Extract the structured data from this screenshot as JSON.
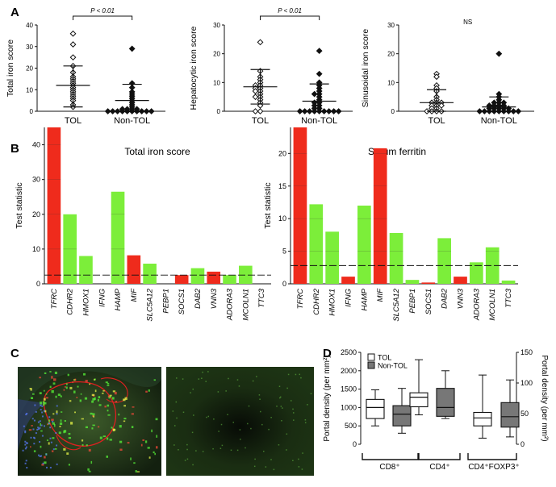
{
  "panels": [
    {
      "letter": "A"
    },
    {
      "letter": "B"
    },
    {
      "letter": "C"
    },
    {
      "letter": "D"
    }
  ],
  "chart_data": [
    {
      "panel": "A",
      "type": "scatter",
      "ylabel": "Total iron score",
      "ylim": [
        0,
        40
      ],
      "yticks": [
        0,
        10,
        20,
        30,
        40
      ],
      "categories": [
        "TOL",
        "Non-TOL"
      ],
      "annotation": "P < 0.01",
      "series": [
        {
          "name": "TOL",
          "values": [
            36,
            31,
            25,
            21,
            18,
            16,
            15,
            14,
            13,
            12,
            11,
            10,
            9,
            8,
            7,
            6,
            5,
            3,
            2
          ]
        },
        {
          "name": "Non-TOL",
          "values": [
            29,
            13,
            11,
            9,
            8,
            7,
            6,
            5,
            4,
            3,
            2,
            1,
            1,
            1,
            1,
            0,
            0,
            0,
            0,
            0,
            0,
            0,
            0,
            0,
            0
          ]
        }
      ],
      "mean_sd": [
        {
          "mean": 12,
          "upper": 21,
          "lower": 2
        },
        {
          "mean": 5,
          "upper": 12.5,
          "lower": 0
        }
      ]
    },
    {
      "panel": "A",
      "type": "scatter",
      "ylabel": "Hepatocytic iron score",
      "ylim": [
        0,
        30
      ],
      "yticks": [
        0,
        10,
        20,
        30
      ],
      "categories": [
        "TOL",
        "Non-TOL"
      ],
      "annotation": "P < 0.01",
      "series": [
        {
          "name": "TOL",
          "values": [
            24,
            14,
            12,
            11,
            10,
            9,
            9,
            8,
            8,
            7,
            7,
            6,
            5,
            5,
            4,
            3,
            2,
            0,
            0
          ]
        },
        {
          "name": "Non-TOL",
          "values": [
            21,
            13,
            10,
            9,
            8,
            7,
            6,
            6,
            5,
            4,
            3,
            3,
            2,
            2,
            1,
            1,
            0,
            0,
            0,
            0,
            0,
            0,
            0,
            0,
            0
          ]
        }
      ],
      "mean_sd": [
        {
          "mean": 8.5,
          "upper": 14.5,
          "lower": 2.5
        },
        {
          "mean": 3.5,
          "upper": 9.5,
          "lower": 0
        }
      ]
    },
    {
      "panel": "A",
      "type": "scatter",
      "ylabel": "Sinusoidal iron score",
      "ylim": [
        0,
        30
      ],
      "yticks": [
        0,
        10,
        20,
        30
      ],
      "categories": [
        "TOL",
        "Non-TOL"
      ],
      "annotation": "NS",
      "series": [
        {
          "name": "TOL",
          "values": [
            13,
            12,
            9,
            8,
            7,
            5,
            4,
            3,
            3,
            3,
            2,
            2,
            2,
            1,
            1,
            0,
            0,
            0,
            0
          ]
        },
        {
          "name": "Non-TOL",
          "values": [
            20,
            6,
            5,
            4,
            3,
            3,
            3,
            2,
            2,
            2,
            2,
            1,
            1,
            1,
            1,
            1,
            0,
            0,
            0,
            0,
            0,
            0,
            0,
            0,
            0
          ]
        }
      ],
      "mean_sd": [
        {
          "mean": 3,
          "upper": 7.5,
          "lower": 0
        },
        {
          "mean": 1.5,
          "upper": 5,
          "lower": 0
        }
      ]
    },
    {
      "panel": "B",
      "type": "bar",
      "title": "Total iron score",
      "ylabel": "Test statistic",
      "ylim": [
        0,
        45
      ],
      "yticks": [
        0,
        10,
        20,
        30,
        40
      ],
      "threshold": 2.5,
      "categories": [
        "TFRC",
        "CDHR2",
        "HMOX1",
        "IFNG",
        "HAMP",
        "MIF",
        "SLC5A12",
        "PEBP1",
        "SOCS1",
        "DAB2",
        "VNN3",
        "ADORA3",
        "MCOLN1",
        "TTC3"
      ],
      "values": [
        45,
        20,
        8,
        0,
        26.5,
        8.2,
        5.8,
        0,
        2.5,
        4.5,
        3.5,
        2.5,
        5.2,
        0
      ],
      "colors": [
        "#ef2b1c",
        "#7cee3a",
        "#7cee3a",
        "#7cee3a",
        "#7cee3a",
        "#ef2b1c",
        "#7cee3a",
        "#7cee3a",
        "#ef2b1c",
        "#7cee3a",
        "#ef2b1c",
        "#7cee3a",
        "#7cee3a",
        "#7cee3a"
      ]
    },
    {
      "panel": "B",
      "type": "bar",
      "title": "Serum ferritin",
      "ylabel": "Test statistic",
      "ylim": [
        0,
        24
      ],
      "yticks": [
        0,
        5,
        10,
        15,
        20
      ],
      "threshold": 2.8,
      "categories": [
        "TFRC",
        "CDHR2",
        "HMOX1",
        "IFNG",
        "HAMP",
        "MIF",
        "SLC5A12",
        "PEBP1",
        "SOCS1",
        "DAB2",
        "VNN3",
        "ADORA3",
        "MCOLN1",
        "TTC3"
      ],
      "values": [
        24,
        12.2,
        8,
        1.1,
        12,
        20.8,
        7.8,
        0.6,
        0.2,
        7,
        1.1,
        3.3,
        5.6,
        0.5
      ],
      "colors": [
        "#ef2b1c",
        "#7cee3a",
        "#7cee3a",
        "#ef2b1c",
        "#7cee3a",
        "#ef2b1c",
        "#7cee3a",
        "#7cee3a",
        "#ef2b1c",
        "#7cee3a",
        "#ef2b1c",
        "#7cee3a",
        "#7cee3a",
        "#7cee3a"
      ]
    },
    {
      "panel": "D",
      "type": "box",
      "ylabel": "Portal density (per mm²)",
      "ylabel_right": "Portal density (per mm²)",
      "ylim": [
        0,
        2500
      ],
      "yticks": [
        0,
        500,
        1000,
        1500,
        2000,
        2500
      ],
      "ylim_right": [
        0,
        150
      ],
      "yticks_right": [
        0,
        50,
        100,
        150
      ],
      "legend": [
        {
          "name": "TOL",
          "color": "#ffffff"
        },
        {
          "name": "Non-TOL",
          "color": "#777777"
        }
      ],
      "groups": [
        "CD8⁺",
        "CD4⁺",
        "CD4⁺FOXP3⁺"
      ],
      "boxes": [
        {
          "group": "CD8⁺",
          "series": "TOL",
          "axis": "left",
          "min": 500,
          "q1": 700,
          "median": 1000,
          "q3": 1220,
          "max": 1480
        },
        {
          "group": "CD8⁺",
          "series": "Non-TOL",
          "axis": "left",
          "min": 300,
          "q1": 500,
          "median": 820,
          "q3": 1050,
          "max": 1520
        },
        {
          "group": "CD4⁺",
          "series": "TOL",
          "axis": "left",
          "min": 800,
          "q1": 1020,
          "median": 1280,
          "q3": 1400,
          "max": 2300
        },
        {
          "group": "CD4⁺",
          "series": "Non-TOL",
          "axis": "left",
          "min": 700,
          "q1": 760,
          "median": 1000,
          "q3": 1520,
          "max": 2000
        },
        {
          "group": "CD4⁺FOXP3⁺",
          "series": "TOL",
          "axis": "right",
          "min": 10,
          "q1": 30,
          "median": 43,
          "q3": 52,
          "max": 113
        },
        {
          "group": "CD4⁺FOXP3⁺",
          "series": "Non-TOL",
          "axis": "right",
          "min": 12,
          "q1": 28,
          "median": 45,
          "q3": 68,
          "max": 105
        }
      ]
    }
  ]
}
